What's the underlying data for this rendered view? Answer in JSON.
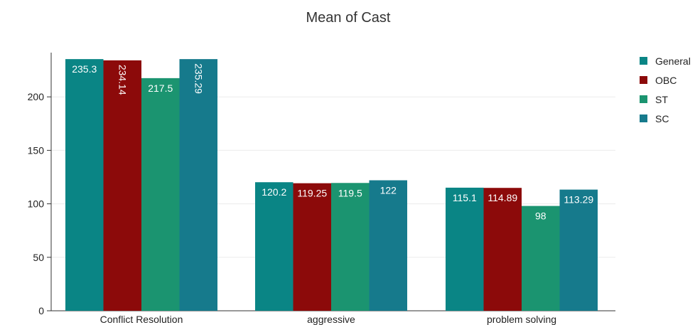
{
  "colors": {
    "General": "#0a8585",
    "OBC": "#8c0a0a",
    "ST": "#1b9470",
    "SC": "#167a8c",
    "grid": "#ebebeb",
    "axis": "#333333"
  },
  "chart_data": {
    "type": "bar",
    "title": "Mean of Cast",
    "xlabel": "",
    "ylabel": "",
    "categories": [
      "Conflict Resolution",
      "aggressive",
      "problem solving"
    ],
    "series": [
      {
        "name": "General",
        "values": [
          235.3,
          120.2,
          115.1
        ],
        "labels": [
          "235.3",
          "120.2",
          "115.1"
        ]
      },
      {
        "name": "OBC",
        "values": [
          234.14,
          119.25,
          114.89
        ],
        "labels": [
          "234.14",
          "119.25",
          "114.89"
        ]
      },
      {
        "name": "ST",
        "values": [
          217.5,
          119.5,
          98
        ],
        "labels": [
          "217.5",
          "119.5",
          "98"
        ]
      },
      {
        "name": "SC",
        "values": [
          235.29,
          122,
          113.29
        ],
        "labels": [
          "235.29",
          "122",
          "113.29"
        ]
      }
    ],
    "yticks": [
      0,
      50,
      100,
      150,
      200
    ],
    "ylim": [
      0,
      240
    ],
    "grid": true,
    "legend": "right"
  }
}
